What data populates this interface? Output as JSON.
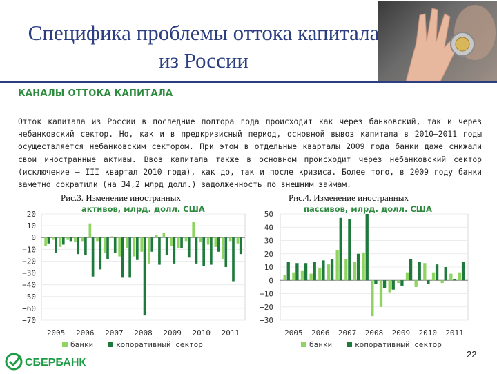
{
  "slide": {
    "title": "Специфика проблемы оттока капитала из России",
    "heading": "КАНАЛЫ ОТТОКА КАПИТАЛА",
    "paragraph": "Отток капитала из России в последние полтора года происходит как через банковский, так и через небанковский сектор. Но, как и в предкризисный период, основной вывоз капитала в 2010–2011 годы осуществляется небанковским сектором. При этом в отдельные кварталы 2009 года банки даже снижали свои иностранные активы. Ввоз капитала также в основном происходит через небанковский сектор (исключение – III квартал 2010 года), как до, так и после кризиса. Более того, в 2009 году банки заметно сократили (на 34,2 млрд долл.) задолженность по внешним займам.",
    "page_number": "22",
    "logo_text": "СБЕРБАНК",
    "colors": {
      "title": "#2c3e80",
      "heading": "#2e8a3e",
      "banks": "#8fd460",
      "corporate": "#1e7a3c"
    }
  },
  "chart_data": [
    {
      "type": "bar",
      "caption": "Рис.3. Изменение иностранных",
      "title": "активов, млрд. долл. США",
      "x_labels": [
        "2005",
        "2006",
        "2007",
        "2008",
        "2009",
        "2010",
        "2011"
      ],
      "ylim": [
        -70,
        20
      ],
      "yticks": [
        20,
        10,
        0,
        -10,
        -20,
        -30,
        -40,
        -50,
        -60,
        -70
      ],
      "legend_position": "bottom",
      "series": [
        {
          "name": "банки",
          "values": [
            -7,
            -2,
            -8,
            -2,
            -4,
            -3,
            12,
            -3,
            -13,
            1,
            -16,
            -9,
            -16,
            -12,
            -22,
            2,
            4,
            -7,
            -9,
            -3,
            13,
            -4,
            -6,
            -8,
            -18,
            -3,
            -5
          ]
        },
        {
          "name": "копоративный сектор",
          "values": [
            -5,
            -13,
            -6,
            -3,
            -14,
            -15,
            -33,
            -27,
            -18,
            -13,
            -34,
            -34,
            -19,
            -66,
            -12,
            -23,
            -15,
            -22,
            -9,
            -17,
            -22,
            -24,
            -23,
            -12,
            -25,
            -37,
            -14
          ]
        }
      ]
    },
    {
      "type": "bar",
      "caption": "Рис.4. Изменение иностранных",
      "title": "пассивов, млрд. долл. США",
      "x_labels": [
        "2005",
        "2006",
        "2007",
        "2008",
        "2009",
        "2010",
        "2011"
      ],
      "ylim": [
        -30,
        50
      ],
      "yticks": [
        50,
        40,
        30,
        20,
        10,
        0,
        -10,
        -20,
        -30
      ],
      "legend_position": "bottom",
      "series": [
        {
          "name": "банки",
          "values": [
            4,
            6,
            7,
            5,
            9,
            12,
            23,
            16,
            14,
            21,
            -27,
            -20,
            -9,
            -2,
            6,
            -5,
            13,
            6,
            -2,
            5,
            6
          ]
        },
        {
          "name": "копоративный сектор",
          "values": [
            14,
            13,
            13,
            14,
            15,
            16,
            47,
            46,
            20,
            50,
            -3,
            -6,
            -7,
            -4,
            16,
            14,
            -3,
            12,
            10,
            1,
            14
          ]
        }
      ]
    }
  ]
}
